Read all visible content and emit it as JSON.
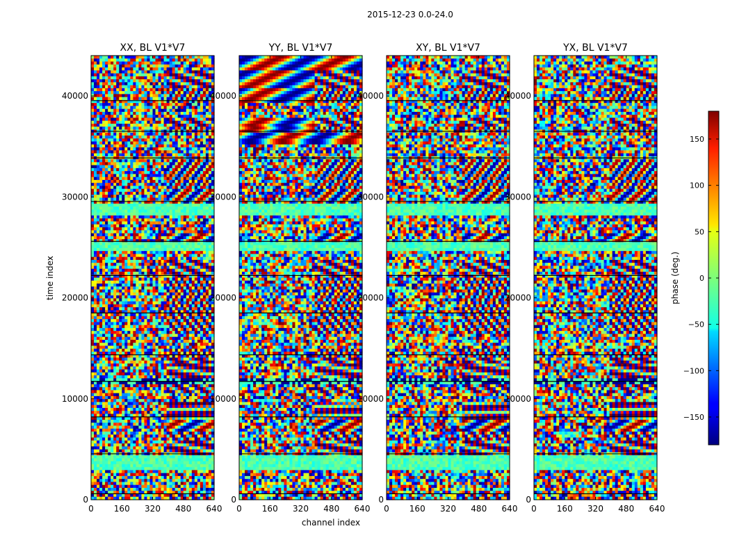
{
  "figure": {
    "suptitle": "2015-12-23 0.0-24.0",
    "colormap": "jet",
    "colors": {
      "background": "#ffffff",
      "axis": "#000000",
      "flag_line": "#000000"
    }
  },
  "chart_data": {
    "type": "heatmap",
    "title": "2015-12-23 0.0-24.0",
    "xlabel": "channel index",
    "ylabel": "time index",
    "xlim": [
      0,
      640
    ],
    "ylim": [
      0,
      44000
    ],
    "xticks": [
      0,
      160,
      320,
      480,
      640
    ],
    "yticks": [
      0,
      10000,
      20000,
      30000,
      40000
    ],
    "panels": [
      {
        "title": "XX, BL V1*V7",
        "pol": "XX"
      },
      {
        "title": "YY, BL V1*V7",
        "pol": "YY"
      },
      {
        "title": "XY, BL V1*V7",
        "pol": "XY"
      },
      {
        "title": "YX, BL V1*V7",
        "pol": "YX"
      }
    ],
    "colorbar": {
      "label": "phase (deg.)",
      "range": [
        -180,
        180
      ],
      "ticks": [
        -150,
        -100,
        -50,
        0,
        50,
        100,
        150
      ],
      "tick_labels": [
        "−150",
        "−100",
        "−50",
        "0",
        "50",
        "100",
        "150"
      ]
    }
  }
}
